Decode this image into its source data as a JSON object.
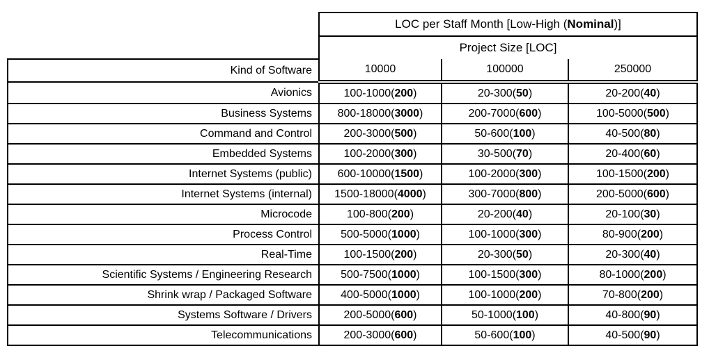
{
  "table": {
    "title": {
      "prefix": "LOC per Staff Month [Low-High (",
      "bold": "Nominal",
      "suffix": ")]"
    },
    "subtitle": "Project Size [LOC]",
    "row_header": "Kind of Software",
    "size_columns": [
      "10000",
      "100000",
      "250000"
    ],
    "paren_open": "(",
    "paren_close": ")",
    "colors": {
      "border": "#000000",
      "text": "#000000",
      "background": "#ffffff"
    },
    "rows": [
      {
        "kind": "Avionics",
        "cells": [
          {
            "range": "100-1000",
            "nominal": "200"
          },
          {
            "range": "20-300",
            "nominal": "50"
          },
          {
            "range": "20-200",
            "nominal": "40"
          }
        ]
      },
      {
        "kind": "Business Systems",
        "cells": [
          {
            "range": "800-18000",
            "nominal": "3000"
          },
          {
            "range": "200-7000",
            "nominal": "600"
          },
          {
            "range": "100-5000",
            "nominal": "500"
          }
        ]
      },
      {
        "kind": "Command and Control",
        "cells": [
          {
            "range": "200-3000",
            "nominal": "500"
          },
          {
            "range": "50-600",
            "nominal": "100"
          },
          {
            "range": "40-500",
            "nominal": "80"
          }
        ]
      },
      {
        "kind": "Embedded Systems",
        "cells": [
          {
            "range": "100-2000",
            "nominal": "300"
          },
          {
            "range": "30-500",
            "nominal": "70"
          },
          {
            "range": "20-400",
            "nominal": "60"
          }
        ]
      },
      {
        "kind": "Internet Systems (public)",
        "cells": [
          {
            "range": "600-10000",
            "nominal": "1500"
          },
          {
            "range": "100-2000",
            "nominal": "300"
          },
          {
            "range": "100-1500",
            "nominal": "200"
          }
        ]
      },
      {
        "kind": "Internet Systems (internal)",
        "cells": [
          {
            "range": "1500-18000",
            "nominal": "4000"
          },
          {
            "range": "300-7000",
            "nominal": "800"
          },
          {
            "range": "200-5000",
            "nominal": "600"
          }
        ]
      },
      {
        "kind": "Microcode",
        "cells": [
          {
            "range": "100-800",
            "nominal": "200"
          },
          {
            "range": "20-200",
            "nominal": "40"
          },
          {
            "range": "20-100",
            "nominal": "30"
          }
        ]
      },
      {
        "kind": "Process Control",
        "cells": [
          {
            "range": "500-5000",
            "nominal": "1000"
          },
          {
            "range": "100-1000",
            "nominal": "300"
          },
          {
            "range": "80-900",
            "nominal": "200"
          }
        ]
      },
      {
        "kind": "Real-Time",
        "cells": [
          {
            "range": "100-1500",
            "nominal": "200"
          },
          {
            "range": "20-300",
            "nominal": "50"
          },
          {
            "range": "20-300",
            "nominal": "40"
          }
        ]
      },
      {
        "kind": "Scientific Systems / Engineering Research",
        "cells": [
          {
            "range": "500-7500",
            "nominal": "1000"
          },
          {
            "range": "100-1500",
            "nominal": "300"
          },
          {
            "range": "80-1000",
            "nominal": "200"
          }
        ]
      },
      {
        "kind": "Shrink wrap / Packaged Software",
        "cells": [
          {
            "range": "400-5000",
            "nominal": "1000"
          },
          {
            "range": "100-1000",
            "nominal": "200"
          },
          {
            "range": "70-800",
            "nominal": "200"
          }
        ]
      },
      {
        "kind": "Systems Software / Drivers",
        "cells": [
          {
            "range": "200-5000",
            "nominal": "600"
          },
          {
            "range": "50-1000",
            "nominal": "100"
          },
          {
            "range": "40-800",
            "nominal": "90"
          }
        ]
      },
      {
        "kind": "Telecommunications",
        "cells": [
          {
            "range": "200-3000",
            "nominal": "600"
          },
          {
            "range": "50-600",
            "nominal": "100"
          },
          {
            "range": "40-500",
            "nominal": "90"
          }
        ]
      }
    ]
  }
}
